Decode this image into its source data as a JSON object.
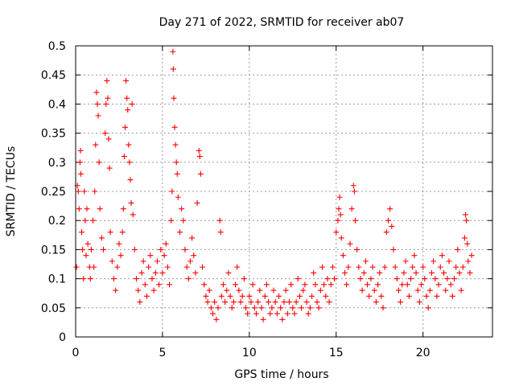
{
  "chart_data": {
    "type": "scatter",
    "title": "Day 271 of 2022, SRMTID for receiver ab07",
    "xlabel": "GPS time / hours",
    "ylabel": "SRMTID / TECUs",
    "xlim": [
      0,
      24
    ],
    "ylim": [
      0,
      0.5
    ],
    "x_ticks": [
      0,
      5,
      10,
      15,
      20
    ],
    "x_tick_labels": [
      "0",
      "5",
      "10",
      "15",
      "20"
    ],
    "y_ticks": [
      0,
      0.05,
      0.1,
      0.15,
      0.2,
      0.25,
      0.3,
      0.35,
      0.4,
      0.45,
      0.5
    ],
    "y_tick_labels": [
      "0",
      "0.05",
      "0.1",
      "0.15",
      "0.2",
      "0.25",
      "0.3",
      "0.35",
      "0.4",
      "0.45",
      "0.5"
    ],
    "grid": true,
    "marker": "+",
    "color": "#ff0000",
    "series": [
      {
        "name": "SRMTID",
        "points": [
          [
            0.05,
            0.12
          ],
          [
            0.1,
            0.26
          ],
          [
            0.15,
            0.25
          ],
          [
            0.2,
            0.22
          ],
          [
            0.25,
            0.3
          ],
          [
            0.28,
            0.32
          ],
          [
            0.3,
            0.28
          ],
          [
            0.35,
            0.18
          ],
          [
            0.4,
            0.15
          ],
          [
            0.45,
            0.1
          ],
          [
            0.5,
            0.25
          ],
          [
            0.55,
            0.2
          ],
          [
            0.6,
            0.14
          ],
          [
            0.65,
            0.22
          ],
          [
            0.7,
            0.16
          ],
          [
            0.8,
            0.12
          ],
          [
            0.85,
            0.1
          ],
          [
            0.9,
            0.15
          ],
          [
            1.0,
            0.2
          ],
          [
            1.05,
            0.12
          ],
          [
            1.1,
            0.25
          ],
          [
            1.15,
            0.33
          ],
          [
            1.2,
            0.42
          ],
          [
            1.25,
            0.4
          ],
          [
            1.3,
            0.38
          ],
          [
            1.35,
            0.3
          ],
          [
            1.4,
            0.22
          ],
          [
            1.5,
            0.17
          ],
          [
            1.6,
            0.15
          ],
          [
            1.7,
            0.35
          ],
          [
            1.75,
            0.4
          ],
          [
            1.8,
            0.44
          ],
          [
            1.85,
            0.41
          ],
          [
            1.9,
            0.34
          ],
          [
            1.95,
            0.29
          ],
          [
            2.0,
            0.18
          ],
          [
            2.1,
            0.13
          ],
          [
            2.2,
            0.1
          ],
          [
            2.3,
            0.08
          ],
          [
            2.4,
            0.12
          ],
          [
            2.5,
            0.16
          ],
          [
            2.6,
            0.14
          ],
          [
            2.7,
            0.18
          ],
          [
            2.75,
            0.22
          ],
          [
            2.8,
            0.31
          ],
          [
            2.85,
            0.36
          ],
          [
            2.9,
            0.44
          ],
          [
            2.95,
            0.41
          ],
          [
            3.0,
            0.39
          ],
          [
            3.05,
            0.33
          ],
          [
            3.1,
            0.3
          ],
          [
            3.15,
            0.27
          ],
          [
            3.2,
            0.23
          ],
          [
            3.25,
            0.4
          ],
          [
            3.3,
            0.21
          ],
          [
            3.4,
            0.15
          ],
          [
            3.5,
            0.1
          ],
          [
            3.6,
            0.08
          ],
          [
            3.7,
            0.06
          ],
          [
            3.8,
            0.11
          ],
          [
            3.9,
            0.13
          ],
          [
            4.0,
            0.09
          ],
          [
            4.1,
            0.07
          ],
          [
            4.2,
            0.12
          ],
          [
            4.3,
            0.14
          ],
          [
            4.4,
            0.1
          ],
          [
            4.5,
            0.08
          ],
          [
            4.6,
            0.11
          ],
          [
            4.7,
            0.13
          ],
          [
            4.8,
            0.09
          ],
          [
            4.9,
            0.15
          ],
          [
            5.0,
            0.11
          ],
          [
            5.1,
            0.14
          ],
          [
            5.2,
            0.16
          ],
          [
            5.3,
            0.12
          ],
          [
            5.4,
            0.09
          ],
          [
            5.5,
            0.2
          ],
          [
            5.55,
            0.25
          ],
          [
            5.6,
            0.49
          ],
          [
            5.62,
            0.46
          ],
          [
            5.65,
            0.41
          ],
          [
            5.7,
            0.36
          ],
          [
            5.75,
            0.33
          ],
          [
            5.8,
            0.3
          ],
          [
            5.85,
            0.28
          ],
          [
            5.9,
            0.24
          ],
          [
            6.0,
            0.18
          ],
          [
            6.1,
            0.22
          ],
          [
            6.2,
            0.2
          ],
          [
            6.3,
            0.15
          ],
          [
            6.4,
            0.12
          ],
          [
            6.5,
            0.1
          ],
          [
            6.6,
            0.13
          ],
          [
            6.7,
            0.17
          ],
          [
            6.8,
            0.14
          ],
          [
            6.9,
            0.11
          ],
          [
            7.0,
            0.23
          ],
          [
            7.1,
            0.32
          ],
          [
            7.15,
            0.31
          ],
          [
            7.2,
            0.28
          ],
          [
            7.3,
            0.12
          ],
          [
            7.4,
            0.09
          ],
          [
            7.5,
            0.07
          ],
          [
            7.6,
            0.06
          ],
          [
            7.7,
            0.08
          ],
          [
            7.8,
            0.05
          ],
          [
            7.9,
            0.04
          ],
          [
            8.0,
            0.06
          ],
          [
            8.1,
            0.03
          ],
          [
            8.2,
            0.05
          ],
          [
            8.3,
            0.2
          ],
          [
            8.35,
            0.18
          ],
          [
            8.4,
            0.07
          ],
          [
            8.5,
            0.09
          ],
          [
            8.6,
            0.06
          ],
          [
            8.7,
            0.08
          ],
          [
            8.8,
            0.11
          ],
          [
            8.9,
            0.07
          ],
          [
            9.0,
            0.05
          ],
          [
            9.1,
            0.06
          ],
          [
            9.2,
            0.09
          ],
          [
            9.3,
            0.12
          ],
          [
            9.4,
            0.08
          ],
          [
            9.5,
            0.06
          ],
          [
            9.6,
            0.07
          ],
          [
            9.7,
            0.1
          ],
          [
            9.8,
            0.05
          ],
          [
            9.9,
            0.04
          ],
          [
            10.0,
            0.07
          ],
          [
            10.1,
            0.06
          ],
          [
            10.2,
            0.09
          ],
          [
            10.3,
            0.05
          ],
          [
            10.4,
            0.04
          ],
          [
            10.5,
            0.06
          ],
          [
            10.6,
            0.08
          ],
          [
            10.7,
            0.05
          ],
          [
            10.8,
            0.03
          ],
          [
            10.9,
            0.07
          ],
          [
            11.0,
            0.09
          ],
          [
            11.1,
            0.06
          ],
          [
            11.2,
            0.04
          ],
          [
            11.3,
            0.05
          ],
          [
            11.4,
            0.08
          ],
          [
            11.5,
            0.06
          ],
          [
            11.6,
            0.04
          ],
          [
            11.7,
            0.07
          ],
          [
            11.8,
            0.05
          ],
          [
            11.9,
            0.03
          ],
          [
            12.0,
            0.06
          ],
          [
            12.1,
            0.08
          ],
          [
            12.2,
            0.04
          ],
          [
            12.3,
            0.06
          ],
          [
            12.4,
            0.09
          ],
          [
            12.5,
            0.05
          ],
          [
            12.6,
            0.04
          ],
          [
            12.7,
            0.06
          ],
          [
            12.8,
            0.1
          ],
          [
            12.9,
            0.07
          ],
          [
            13.0,
            0.05
          ],
          [
            13.1,
            0.08
          ],
          [
            13.2,
            0.09
          ],
          [
            13.3,
            0.06
          ],
          [
            13.4,
            0.04
          ],
          [
            13.5,
            0.05
          ],
          [
            13.6,
            0.07
          ],
          [
            13.7,
            0.11
          ],
          [
            13.8,
            0.09
          ],
          [
            13.9,
            0.06
          ],
          [
            14.0,
            0.05
          ],
          [
            14.1,
            0.08
          ],
          [
            14.2,
            0.12
          ],
          [
            14.3,
            0.09
          ],
          [
            14.4,
            0.07
          ],
          [
            14.5,
            0.1
          ],
          [
            14.6,
            0.06
          ],
          [
            14.7,
            0.09
          ],
          [
            14.8,
            0.12
          ],
          [
            14.9,
            0.1
          ],
          [
            15.0,
            0.18
          ],
          [
            15.1,
            0.2
          ],
          [
            15.15,
            0.22
          ],
          [
            15.2,
            0.24
          ],
          [
            15.25,
            0.21
          ],
          [
            15.3,
            0.17
          ],
          [
            15.4,
            0.14
          ],
          [
            15.5,
            0.11
          ],
          [
            15.6,
            0.09
          ],
          [
            15.7,
            0.12
          ],
          [
            15.8,
            0.16
          ],
          [
            15.9,
            0.22
          ],
          [
            16.0,
            0.26
          ],
          [
            16.05,
            0.25
          ],
          [
            16.1,
            0.2
          ],
          [
            16.2,
            0.15
          ],
          [
            16.3,
            0.12
          ],
          [
            16.4,
            0.1
          ],
          [
            16.5,
            0.08
          ],
          [
            16.6,
            0.11
          ],
          [
            16.7,
            0.13
          ],
          [
            16.8,
            0.09
          ],
          [
            16.9,
            0.07
          ],
          [
            17.0,
            0.1
          ],
          [
            17.1,
            0.12
          ],
          [
            17.2,
            0.08
          ],
          [
            17.3,
            0.06
          ],
          [
            17.4,
            0.09
          ],
          [
            17.5,
            0.11
          ],
          [
            17.6,
            0.07
          ],
          [
            17.7,
            0.05
          ],
          [
            17.8,
            0.12
          ],
          [
            17.9,
            0.18
          ],
          [
            18.0,
            0.2
          ],
          [
            18.1,
            0.22
          ],
          [
            18.2,
            0.19
          ],
          [
            18.3,
            0.15
          ],
          [
            18.4,
            0.12
          ],
          [
            18.5,
            0.1
          ],
          [
            18.6,
            0.08
          ],
          [
            18.7,
            0.06
          ],
          [
            18.8,
            0.09
          ],
          [
            18.9,
            0.11
          ],
          [
            19.0,
            0.13
          ],
          [
            19.1,
            0.09
          ],
          [
            19.2,
            0.07
          ],
          [
            19.3,
            0.1
          ],
          [
            19.4,
            0.12
          ],
          [
            19.5,
            0.14
          ],
          [
            19.6,
            0.11
          ],
          [
            19.7,
            0.08
          ],
          [
            19.8,
            0.06
          ],
          [
            19.9,
            0.09
          ],
          [
            20.0,
            0.12
          ],
          [
            20.1,
            0.1
          ],
          [
            20.2,
            0.07
          ],
          [
            20.3,
            0.05
          ],
          [
            20.4,
            0.08
          ],
          [
            20.5,
            0.11
          ],
          [
            20.6,
            0.13
          ],
          [
            20.7,
            0.1
          ],
          [
            20.8,
            0.07
          ],
          [
            20.9,
            0.09
          ],
          [
            21.0,
            0.12
          ],
          [
            21.1,
            0.14
          ],
          [
            21.2,
            0.11
          ],
          [
            21.3,
            0.08
          ],
          [
            21.4,
            0.1
          ],
          [
            21.5,
            0.13
          ],
          [
            21.6,
            0.09
          ],
          [
            21.7,
            0.07
          ],
          [
            21.8,
            0.1
          ],
          [
            21.9,
            0.12
          ],
          [
            22.0,
            0.15
          ],
          [
            22.1,
            0.11
          ],
          [
            22.2,
            0.08
          ],
          [
            22.3,
            0.12
          ],
          [
            22.4,
            0.17
          ],
          [
            22.45,
            0.21
          ],
          [
            22.5,
            0.2
          ],
          [
            22.55,
            0.16
          ],
          [
            22.6,
            0.13
          ],
          [
            22.7,
            0.11
          ],
          [
            22.8,
            0.14
          ]
        ]
      }
    ]
  }
}
